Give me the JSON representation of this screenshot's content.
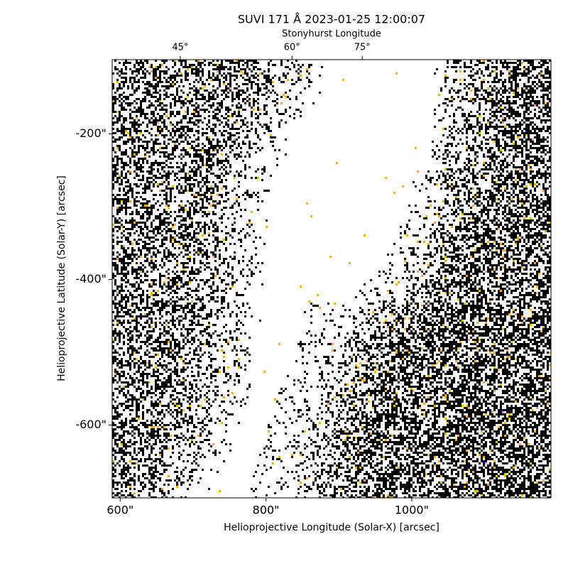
{
  "chart_data": {
    "type": "image",
    "title": "SUVI 171 Å 2023-01-25 12:00:07",
    "xlabel": "Helioprojective Longitude (Solar-X) [arcsec]",
    "ylabel": "Helioprojective Latitude (Solar-Y) [arcsec]",
    "top_xlabel": "Stonyhurst Longitude",
    "xlim": [
      589,
      1191
    ],
    "ylim": [
      -700,
      -98
    ],
    "xticks": [
      {
        "value": 600,
        "label": "600\""
      },
      {
        "value": 800,
        "label": "800\""
      },
      {
        "value": 1000,
        "label": "1000\""
      }
    ],
    "yticks": [
      {
        "value": -200,
        "label": "-200\""
      },
      {
        "value": -400,
        "label": "-400\""
      },
      {
        "value": -600,
        "label": "-600\""
      }
    ],
    "top_xticks": [
      {
        "value": 45,
        "label": "45°"
      },
      {
        "value": 60,
        "label": "60°"
      },
      {
        "value": 75,
        "label": "75°"
      }
    ],
    "colors": [
      "#000000",
      "#f5b000"
    ]
  }
}
